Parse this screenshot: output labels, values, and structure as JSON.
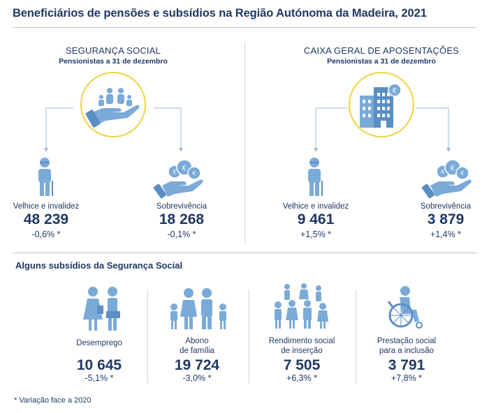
{
  "title": "Beneficiários de pensões e subsídios na Região Autónoma da Madeira, 2021",
  "left": {
    "heading": "SEGURANÇA SOCIAL",
    "subheading": "Pensionistas a 31 de dezembro",
    "items": [
      {
        "label": "Velhice e invalidez",
        "value": "48 239",
        "change": "-0,6% *"
      },
      {
        "label": "Sobrevivência",
        "value": "18 268",
        "change": "-0,1% *"
      }
    ]
  },
  "right": {
    "heading": "CAIXA GERAL DE APOSENTAÇÕES",
    "subheading": "Pensionistas a 31 de dezembro",
    "items": [
      {
        "label": "Velhice e invalidez",
        "value": "9 461",
        "change": "+1,5% *"
      },
      {
        "label": "Sobrevivência",
        "value": "3 879",
        "change": "+1,4% *"
      }
    ]
  },
  "subsidies": {
    "heading": "Alguns subsídios da Segurança Social",
    "items": [
      {
        "label_line1": "",
        "label_line2": "Desemprego",
        "value": "10 645",
        "change": "-5,1% *",
        "icon": "unemployment-icon"
      },
      {
        "label_line1": "Abono",
        "label_line2": "de família",
        "value": "19 724",
        "change": "-3,0% *",
        "icon": "family-icon"
      },
      {
        "label_line1": "Rendimento social",
        "label_line2": "de inserção",
        "value": "7 505",
        "change": "+6,3% *",
        "icon": "community-icon"
      },
      {
        "label_line1": "Prestação social",
        "label_line2": "para a inclusão",
        "value": "3 791",
        "change": "+7,8% *",
        "icon": "wheelchair-icon"
      }
    ]
  },
  "footnote": "* Variação face a 2020",
  "colors": {
    "navy": "#1f3864",
    "light_blue": "#7aaad8",
    "mid_blue": "#5b8ec4",
    "yellow_ring": "#f0d23c",
    "arrow": "#9fb9d6"
  }
}
